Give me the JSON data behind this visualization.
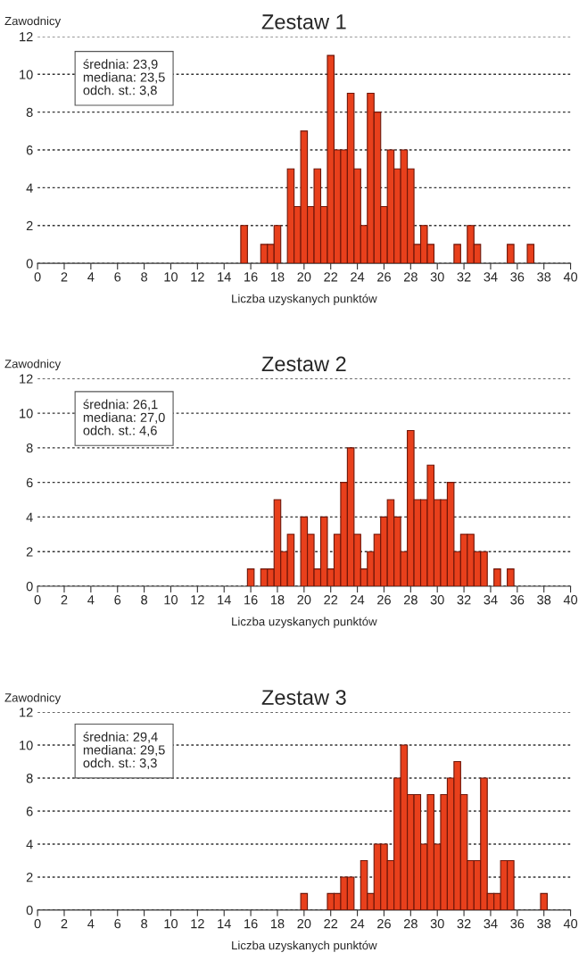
{
  "chart_data": [
    {
      "type": "histogram",
      "title": "Zestaw 1",
      "ylabel": "Zawodnicy",
      "xlabel": "Liczba uzyskanych punktów",
      "color": "#e8401c",
      "bins": [
        15.25,
        15.75,
        16.25,
        16.75,
        17.25,
        17.75,
        18.25,
        18.75,
        19.25,
        19.75,
        20.25,
        20.75,
        21.25,
        21.75,
        22.25,
        22.75,
        23.25,
        23.75,
        24.25,
        24.75,
        25.25,
        25.75,
        26.25,
        26.75,
        27.25,
        27.75,
        28.25,
        28.75,
        29.25,
        29.75,
        30.25,
        30.75,
        31.25,
        31.75,
        32.25,
        32.75,
        33.25,
        33.75,
        34.25,
        34.75,
        35.25,
        35.75,
        36.25,
        36.75,
        37.25
      ],
      "values": [
        2,
        0,
        0,
        1,
        1,
        2,
        0,
        5,
        3,
        7,
        3,
        5,
        3,
        11,
        6,
        6,
        9,
        5,
        2,
        9,
        8,
        3,
        6,
        5,
        6,
        5,
        1,
        2,
        1,
        0,
        0,
        0,
        1,
        0,
        2,
        1,
        0,
        0,
        0,
        0,
        1,
        0,
        0,
        1
      ],
      "annotations": [
        "średnia: 23,9\nmediana: 23,5\nodch. st.: 3,8"
      ],
      "xlim": [
        0,
        40
      ],
      "xticks": [
        0,
        2,
        4,
        6,
        8,
        10,
        12,
        14,
        16,
        18,
        20,
        22,
        24,
        26,
        28,
        30,
        32,
        34,
        36,
        38,
        40
      ],
      "ylim": [
        0,
        12
      ],
      "yticks": [
        0,
        2,
        4,
        6,
        8,
        10,
        12
      ],
      "grid": "y"
    },
    {
      "type": "histogram",
      "title": "Zestaw 2",
      "ylabel": "Zawodnicy",
      "xlabel": "Liczba uzyskanych punktów",
      "color": "#e8401c",
      "bins": [
        15.75,
        16.25,
        16.75,
        17.25,
        17.75,
        18.25,
        18.75,
        19.25,
        19.75,
        20.25,
        20.75,
        21.25,
        21.75,
        22.25,
        22.75,
        23.25,
        23.75,
        24.25,
        24.75,
        25.25,
        25.75,
        26.25,
        26.75,
        27.25,
        27.75,
        28.25,
        28.75,
        29.25,
        29.75,
        30.25,
        30.75,
        31.25,
        31.75,
        32.25,
        32.75,
        33.25,
        33.75,
        34.25,
        34.75,
        35.25,
        35.75
      ],
      "values": [
        1,
        0,
        1,
        1,
        5,
        2,
        3,
        0,
        4,
        3,
        1,
        4,
        1,
        3,
        6,
        8,
        3,
        1,
        2,
        3,
        4,
        5,
        4,
        2,
        9,
        5,
        5,
        7,
        5,
        5,
        6,
        2,
        3,
        3,
        2,
        2,
        0,
        1,
        0,
        1
      ],
      "annotations": [
        "średnia: 26,1\nmediana: 27,0\nodch. st.: 4,6"
      ],
      "xlim": [
        0,
        40
      ],
      "xticks": [
        0,
        2,
        4,
        6,
        8,
        10,
        12,
        14,
        16,
        18,
        20,
        22,
        24,
        26,
        28,
        30,
        32,
        34,
        36,
        38,
        40
      ],
      "ylim": [
        0,
        12
      ],
      "yticks": [
        0,
        2,
        4,
        6,
        8,
        10,
        12
      ],
      "grid": "y"
    },
    {
      "type": "histogram",
      "title": "Zestaw 3",
      "ylabel": "Zawodnicy",
      "xlabel": "Liczba uzyskanych punktów",
      "color": "#e8401c",
      "bins": [
        19.75,
        20.25,
        20.75,
        21.25,
        21.75,
        22.25,
        22.75,
        23.25,
        23.75,
        24.25,
        24.75,
        25.25,
        25.75,
        26.25,
        26.75,
        27.25,
        27.75,
        28.25,
        28.75,
        29.25,
        29.75,
        30.25,
        30.75,
        31.25,
        31.75,
        32.25,
        32.75,
        33.25,
        33.75,
        34.25,
        34.75,
        35.25,
        35.75,
        36.25,
        36.75,
        37.25,
        37.75,
        38.25
      ],
      "values": [
        1,
        0,
        0,
        0,
        1,
        1,
        2,
        2,
        0,
        3,
        1,
        4,
        4,
        3,
        8,
        10,
        7,
        7,
        4,
        7,
        4,
        7,
        8,
        9,
        7,
        3,
        3,
        8,
        1,
        1,
        3,
        3,
        0,
        0,
        0,
        0,
        1
      ],
      "annotations": [
        "średnia: 29,4\nmediana: 29,5\nodch. st.: 3,3"
      ],
      "xlim": [
        0,
        40
      ],
      "xticks": [
        0,
        2,
        4,
        6,
        8,
        10,
        12,
        14,
        16,
        18,
        20,
        22,
        24,
        26,
        28,
        30,
        32,
        34,
        36,
        38,
        40
      ],
      "ylim": [
        0,
        12
      ],
      "yticks": [
        0,
        2,
        4,
        6,
        8,
        10,
        12
      ],
      "grid": "y"
    }
  ]
}
